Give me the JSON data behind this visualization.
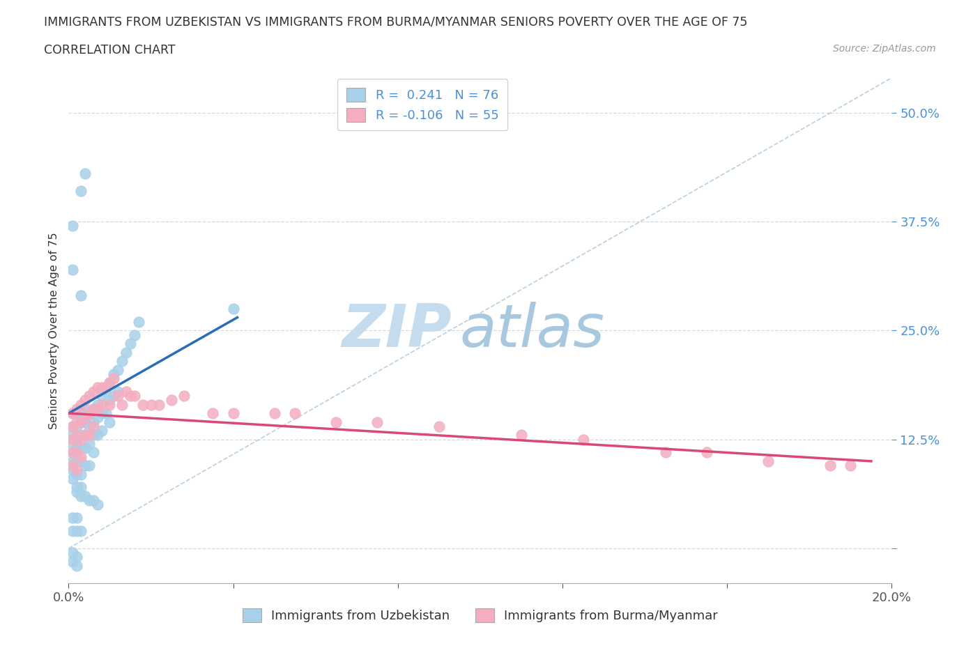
{
  "title": "IMMIGRANTS FROM UZBEKISTAN VS IMMIGRANTS FROM BURMA/MYANMAR SENIORS POVERTY OVER THE AGE OF 75",
  "subtitle": "CORRELATION CHART",
  "source": "Source: ZipAtlas.com",
  "ylabel": "Seniors Poverty Over the Age of 75",
  "xmin": 0.0,
  "xmax": 0.2,
  "ymin": -0.04,
  "ymax": 0.54,
  "ytick_vals": [
    0.0,
    0.125,
    0.25,
    0.375,
    0.5
  ],
  "ytick_labels": [
    "",
    "12.5%",
    "25.0%",
    "37.5%",
    "50.0%"
  ],
  "xtick_vals": [
    0.0,
    0.04,
    0.08,
    0.12,
    0.16,
    0.2
  ],
  "xtick_labels": [
    "0.0%",
    "",
    "",
    "",
    "",
    "20.0%"
  ],
  "blue_scatter_color": "#a8d0e8",
  "pink_scatter_color": "#f4aec0",
  "blue_line_color": "#2a6db5",
  "pink_line_color": "#d94878",
  "grid_color": "#d8d8d8",
  "ref_line_color": "#b8cfe0",
  "watermark_zip_color": "#c8dff0",
  "watermark_atlas_color": "#b0d0e8",
  "title_color": "#333333",
  "tick_color_y": "#4a90d9",
  "tick_color_x": "#555555",
  "source_color": "#999999",
  "legend_r1_label": "R =  0.241   N = 76",
  "legend_r2_label": "R = -0.106   N = 55",
  "legend1_label": "Immigrants from Uzbekistan",
  "legend2_label": "Immigrants from Burma/Myanmar",
  "uz_trend_x": [
    0.0,
    0.041
  ],
  "uz_trend_y": [
    0.155,
    0.265
  ],
  "bm_trend_x": [
    0.0,
    0.195
  ],
  "bm_trend_y": [
    0.155,
    0.1
  ],
  "uz_x": [
    0.001,
    0.001,
    0.001,
    0.001,
    0.001,
    0.001,
    0.001,
    0.001,
    0.002,
    0.002,
    0.002,
    0.002,
    0.002,
    0.002,
    0.002,
    0.003,
    0.003,
    0.003,
    0.003,
    0.003,
    0.003,
    0.003,
    0.004,
    0.004,
    0.004,
    0.004,
    0.004,
    0.005,
    0.005,
    0.005,
    0.005,
    0.006,
    0.006,
    0.006,
    0.006,
    0.007,
    0.007,
    0.007,
    0.008,
    0.008,
    0.008,
    0.009,
    0.009,
    0.01,
    0.01,
    0.01,
    0.011,
    0.011,
    0.012,
    0.012,
    0.013,
    0.014,
    0.015,
    0.016,
    0.017,
    0.002,
    0.003,
    0.004,
    0.005,
    0.006,
    0.007,
    0.001,
    0.002,
    0.001,
    0.002,
    0.003,
    0.001,
    0.001,
    0.002,
    0.002,
    0.001,
    0.001,
    0.003,
    0.003,
    0.004,
    0.04
  ],
  "uz_y": [
    0.155,
    0.14,
    0.13,
    0.12,
    0.11,
    0.1,
    0.09,
    0.08,
    0.155,
    0.14,
    0.125,
    0.115,
    0.1,
    0.085,
    0.07,
    0.155,
    0.145,
    0.13,
    0.115,
    0.1,
    0.085,
    0.07,
    0.16,
    0.145,
    0.13,
    0.115,
    0.095,
    0.155,
    0.14,
    0.12,
    0.095,
    0.16,
    0.145,
    0.13,
    0.11,
    0.165,
    0.15,
    0.13,
    0.175,
    0.155,
    0.135,
    0.18,
    0.155,
    0.19,
    0.17,
    0.145,
    0.2,
    0.175,
    0.205,
    0.18,
    0.215,
    0.225,
    0.235,
    0.245,
    0.26,
    0.065,
    0.06,
    0.06,
    0.055,
    0.055,
    0.05,
    0.035,
    0.035,
    0.02,
    0.02,
    0.02,
    -0.005,
    -0.015,
    -0.01,
    -0.02,
    0.32,
    0.37,
    0.29,
    0.41,
    0.43,
    0.275
  ],
  "bm_x": [
    0.001,
    0.001,
    0.001,
    0.001,
    0.001,
    0.002,
    0.002,
    0.002,
    0.002,
    0.002,
    0.003,
    0.003,
    0.003,
    0.003,
    0.004,
    0.004,
    0.004,
    0.005,
    0.005,
    0.005,
    0.006,
    0.006,
    0.006,
    0.007,
    0.007,
    0.008,
    0.008,
    0.009,
    0.01,
    0.01,
    0.011,
    0.012,
    0.013,
    0.014,
    0.015,
    0.016,
    0.018,
    0.02,
    0.022,
    0.025,
    0.028,
    0.035,
    0.04,
    0.05,
    0.055,
    0.065,
    0.075,
    0.09,
    0.11,
    0.125,
    0.145,
    0.155,
    0.17,
    0.185,
    0.19
  ],
  "bm_y": [
    0.155,
    0.14,
    0.125,
    0.11,
    0.095,
    0.16,
    0.145,
    0.13,
    0.11,
    0.09,
    0.165,
    0.145,
    0.125,
    0.105,
    0.17,
    0.15,
    0.13,
    0.175,
    0.155,
    0.13,
    0.18,
    0.16,
    0.14,
    0.185,
    0.16,
    0.185,
    0.165,
    0.185,
    0.19,
    0.165,
    0.195,
    0.175,
    0.165,
    0.18,
    0.175,
    0.175,
    0.165,
    0.165,
    0.165,
    0.17,
    0.175,
    0.155,
    0.155,
    0.155,
    0.155,
    0.145,
    0.145,
    0.14,
    0.13,
    0.125,
    0.11,
    0.11,
    0.1,
    0.095,
    0.095
  ]
}
